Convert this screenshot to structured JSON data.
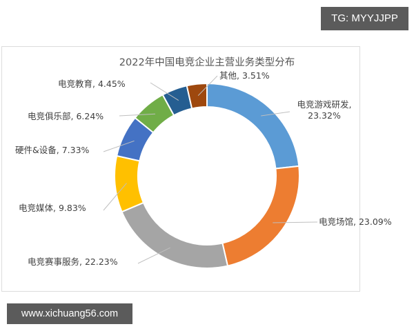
{
  "watermarks": {
    "top_right": "TG: MYYJJPP",
    "bottom_left": "www.xichuang56.com"
  },
  "chart_data": {
    "type": "pie",
    "variant": "donut",
    "title": "2022年中国电竞企业主营业务类型分布",
    "start_angle": "12 o'clock, clockwise",
    "categories": [
      "电竞游戏研发",
      "电竞场馆",
      "电竞赛事服务",
      "电竞媒体",
      "硬件&设备",
      "电竞俱乐部",
      "电竞教育",
      "其他"
    ],
    "values": [
      23.32,
      23.09,
      22.23,
      9.83,
      7.33,
      6.24,
      4.45,
      3.51
    ],
    "unit": "%",
    "labels": [
      "电竞游戏研发, 23.32%",
      "电竞场馆, 23.09%",
      "电竞赛事服务, 22.23%",
      "电竞媒体, 9.83%",
      "硬件&设备, 7.33%",
      "电竞俱乐部, 6.24%",
      "电竞教育, 4.45%",
      "其他, 3.51%"
    ],
    "colors": [
      "#5b9bd5",
      "#ed7d31",
      "#a5a5a5",
      "#ffc000",
      "#4472c4",
      "#70ad47",
      "#255e91",
      "#9e480e"
    ],
    "legend": "none (data labels with leader lines)"
  }
}
